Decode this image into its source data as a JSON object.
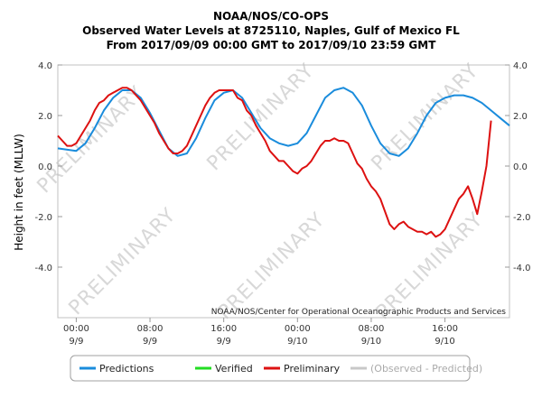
{
  "chart_data": {
    "type": "line",
    "title": [
      "NOAA/NOS/CO-OPS",
      "Observed Water Levels at 8725110, Naples, Gulf of Mexico FL",
      "From 2017/09/09 00:00 GMT to 2017/09/10 23:59 GMT"
    ],
    "ylabel": "Height in feet (MLLW)",
    "ylim": [
      -6,
      4
    ],
    "xlim_hours": [
      -2,
      47
    ],
    "yticks": [
      {
        "value": 4,
        "label": "4.0"
      },
      {
        "value": 2,
        "label": "2.0"
      },
      {
        "value": 0,
        "label": "0.0"
      },
      {
        "value": -2,
        "label": "-2.0"
      },
      {
        "value": -4,
        "label": "-4.0"
      }
    ],
    "xticks": [
      {
        "hour": 0,
        "time": "00:00",
        "date": "9/9"
      },
      {
        "hour": 8,
        "time": "08:00",
        "date": "9/9"
      },
      {
        "hour": 16,
        "time": "16:00",
        "date": "9/9"
      },
      {
        "hour": 24,
        "time": "00:00",
        "date": "9/10"
      },
      {
        "hour": 32,
        "time": "08:00",
        "date": "9/10"
      },
      {
        "hour": 40,
        "time": "16:00",
        "date": "9/10"
      }
    ],
    "watermark": "PRELIMINARY",
    "credit": "NOAA/NOS/Center for Operational Oceanographic Products and Services",
    "series": [
      {
        "name": "Predictions",
        "color": "#1a8cdc",
        "x": [
          -2,
          0,
          1,
          2,
          3,
          4,
          5,
          6,
          7,
          8,
          9,
          10,
          11,
          12,
          13,
          14,
          15,
          16,
          17,
          18,
          19,
          20,
          21,
          22,
          23,
          24,
          25,
          26,
          27,
          28,
          29,
          30,
          31,
          32,
          33,
          34,
          35,
          36,
          37,
          38,
          39,
          40,
          41,
          42,
          43,
          44,
          45,
          46,
          47
        ],
        "values": [
          0.7,
          0.6,
          0.9,
          1.5,
          2.2,
          2.7,
          3.0,
          3.0,
          2.7,
          2.1,
          1.4,
          0.7,
          0.4,
          0.5,
          1.1,
          1.9,
          2.6,
          2.9,
          3.0,
          2.7,
          2.1,
          1.5,
          1.1,
          0.9,
          0.8,
          0.9,
          1.3,
          2.0,
          2.7,
          3.0,
          3.1,
          2.9,
          2.4,
          1.6,
          0.9,
          0.5,
          0.4,
          0.7,
          1.3,
          2.0,
          2.5,
          2.7,
          2.8,
          2.8,
          2.7,
          2.5,
          2.2,
          1.9,
          1.6
        ]
      },
      {
        "name": "Verified",
        "color": "#22dd22",
        "x": [],
        "values": []
      },
      {
        "name": "Preliminary",
        "color": "#dd1111",
        "x": [
          -2,
          -1.5,
          -1,
          -0.5,
          0,
          0.5,
          1,
          1.5,
          2,
          2.5,
          3,
          3.5,
          4,
          4.5,
          5,
          5.5,
          6,
          6.5,
          7,
          7.5,
          8,
          8.5,
          9,
          9.5,
          10,
          10.5,
          11,
          11.5,
          12,
          12.5,
          13,
          13.5,
          14,
          14.5,
          15,
          15.5,
          16,
          16.5,
          17,
          17.5,
          18,
          18.5,
          19,
          19.5,
          20,
          20.5,
          21,
          21.5,
          22,
          22.5,
          23,
          23.5,
          24,
          24.5,
          25,
          25.5,
          26,
          26.5,
          27,
          27.5,
          28,
          28.5,
          29,
          29.5,
          30,
          30.5,
          31,
          31.5,
          32,
          32.5,
          33,
          33.5,
          34,
          34.5,
          35,
          35.5,
          36,
          36.5,
          37,
          37.5,
          38,
          38.5,
          39,
          39.5,
          40,
          40.5,
          41,
          41.5,
          42,
          42.5,
          43,
          43.5,
          44,
          44.5,
          45
        ],
        "values": [
          1.2,
          1.0,
          0.8,
          0.8,
          0.9,
          1.2,
          1.5,
          1.8,
          2.2,
          2.5,
          2.6,
          2.8,
          2.9,
          3.0,
          3.1,
          3.1,
          3.0,
          2.8,
          2.6,
          2.3,
          2.0,
          1.7,
          1.3,
          1.0,
          0.7,
          0.5,
          0.5,
          0.6,
          0.8,
          1.2,
          1.6,
          2.0,
          2.4,
          2.7,
          2.9,
          3.0,
          3.0,
          3.0,
          3.0,
          2.7,
          2.6,
          2.2,
          2.0,
          1.6,
          1.3,
          1.0,
          0.6,
          0.4,
          0.2,
          0.2,
          0.0,
          -0.2,
          -0.3,
          -0.1,
          0.0,
          0.2,
          0.5,
          0.8,
          1.0,
          1.0,
          1.1,
          1.0,
          1.0,
          0.9,
          0.5,
          0.1,
          -0.1,
          -0.5,
          -0.8,
          -1.0,
          -1.3,
          -1.8,
          -2.3,
          -2.5,
          -2.3,
          -2.2,
          -2.4,
          -2.5,
          -2.6,
          -2.6,
          -2.7,
          -2.6,
          -2.8,
          -2.7,
          -2.5,
          -2.1,
          -1.7,
          -1.3,
          -1.1,
          -0.8,
          -1.3,
          -1.9,
          -1.0,
          0.0,
          1.8
        ]
      },
      {
        "name": "(Observed - Predicted)",
        "color": "#c8c8c8",
        "x": [],
        "values": []
      }
    ],
    "legend_position": "bottom"
  }
}
